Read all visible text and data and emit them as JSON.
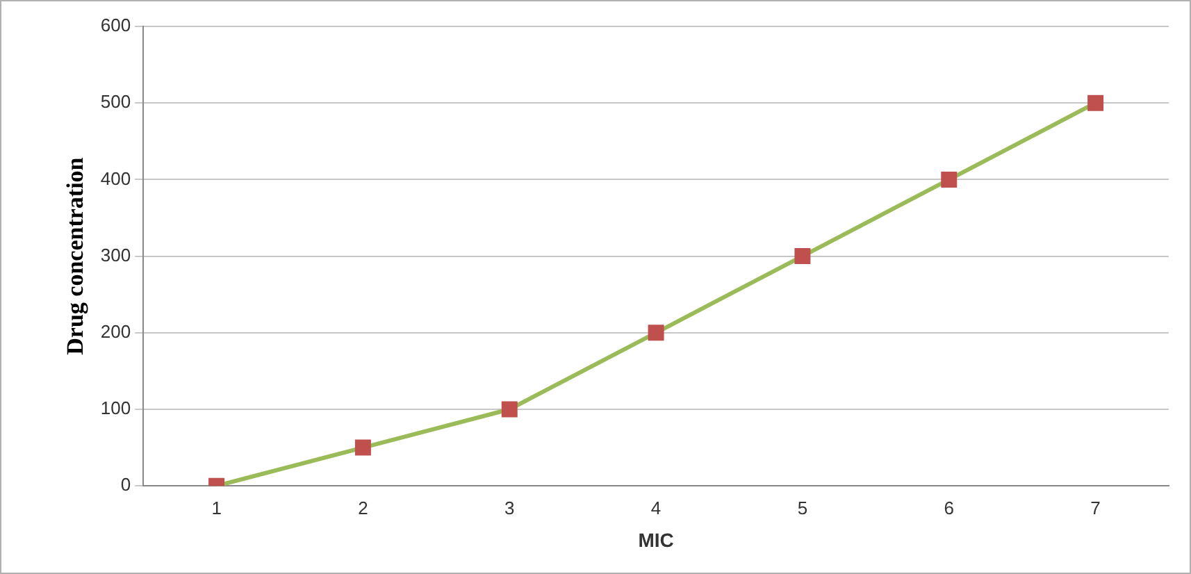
{
  "chart_data": {
    "type": "line",
    "xlabel": "MIC",
    "ylabel": "Drug concentration",
    "categories": [
      "1",
      "2",
      "3",
      "4",
      "5",
      "6",
      "7"
    ],
    "series": [
      {
        "color": "#9bbb59",
        "colors": [
          "#c0504d",
          "#c0504d",
          "#c0504d",
          "#c0504d",
          "#c0504d",
          "#c0504d",
          "#c0504d"
        ],
        "values": [
          0,
          50,
          100,
          200,
          300,
          400,
          500
        ]
      }
    ],
    "ylim": [
      0,
      600
    ],
    "yticks": [
      0,
      100,
      200,
      300,
      400,
      500,
      600
    ],
    "grid": "y",
    "legend": false,
    "marker": "square",
    "line_style": "solid"
  }
}
